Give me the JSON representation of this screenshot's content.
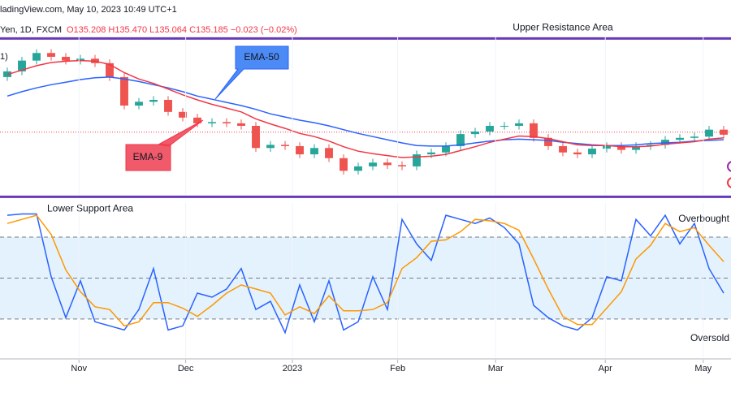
{
  "header": {
    "source": "ladingView.com, May 10, 2023 10:49 UTC+1",
    "symbol": "Yen, 1D, FXCM",
    "ohlc": "O135.208 H135.470 L135.064 C135.185 −0.023 (−0.02%)",
    "study": "1)"
  },
  "chart_data": [
    {
      "type": "candlestick",
      "xlim": [
        -0.5,
        49.5
      ],
      "ylim": [
        127,
        152
      ],
      "up_color": "#26a69a",
      "down_color": "#ef5350",
      "open": [
        145.6,
        146.5,
        148.2,
        149.4,
        148.8,
        148.2,
        148.5,
        147.8,
        145.6,
        141.1,
        141.7,
        142.0,
        140.1,
        139.2,
        138.3,
        138.5,
        138.3,
        137.9,
        134.4,
        134.9,
        134.7,
        133.4,
        134.4,
        132.8,
        130.8,
        131.5,
        132.1,
        131.7,
        131.5,
        133.4,
        133.7,
        134.7,
        136.6,
        137.0,
        137.9,
        137.9,
        138.3,
        136.0,
        134.7,
        133.7,
        133.4,
        134.3,
        134.7,
        134.1,
        134.7,
        134.9,
        135.7,
        136.0,
        136.2,
        137.3
      ],
      "high": [
        147.1,
        148.8,
        150.0,
        150.0,
        149.4,
        149.1,
        149.1,
        148.4,
        146.2,
        142.3,
        142.6,
        142.6,
        140.7,
        139.8,
        139.1,
        139.1,
        138.9,
        138.5,
        135.5,
        135.5,
        135.3,
        135.0,
        135.0,
        133.4,
        132.1,
        132.7,
        132.7,
        132.3,
        134.0,
        134.3,
        135.3,
        137.2,
        137.6,
        138.5,
        138.5,
        138.9,
        138.9,
        136.6,
        135.3,
        134.3,
        134.9,
        135.3,
        135.3,
        135.3,
        135.5,
        136.3,
        136.6,
        136.8,
        137.9,
        137.9
      ],
      "low": [
        145.0,
        145.9,
        147.6,
        148.2,
        147.6,
        147.6,
        147.2,
        145.0,
        140.5,
        140.5,
        141.1,
        139.5,
        138.6,
        137.7,
        137.7,
        137.7,
        137.3,
        133.8,
        133.8,
        134.1,
        132.8,
        132.8,
        132.2,
        130.2,
        130.2,
        130.9,
        131.1,
        130.9,
        130.9,
        132.8,
        133.1,
        134.1,
        136.0,
        136.4,
        137.3,
        137.3,
        135.4,
        134.1,
        133.1,
        132.8,
        132.8,
        133.7,
        133.5,
        133.5,
        134.1,
        134.3,
        135.1,
        135.4,
        135.6,
        135.9
      ],
      "close": [
        146.5,
        148.2,
        149.4,
        148.8,
        148.2,
        148.5,
        147.8,
        145.6,
        141.1,
        141.7,
        142.0,
        140.1,
        139.2,
        138.3,
        138.5,
        138.3,
        137.9,
        134.4,
        134.9,
        134.7,
        133.4,
        134.4,
        132.8,
        130.8,
        131.5,
        132.1,
        131.7,
        131.5,
        133.4,
        133.7,
        134.7,
        136.6,
        137.0,
        137.9,
        137.9,
        138.3,
        136.0,
        134.7,
        133.7,
        133.4,
        134.3,
        134.7,
        134.1,
        134.7,
        134.9,
        135.7,
        136.0,
        136.2,
        137.3,
        136.5
      ],
      "series": [
        {
          "name": "EMA-50",
          "color": "#2962ff",
          "values": [
            142.6,
            143.3,
            143.9,
            144.4,
            144.8,
            145.2,
            145.5,
            145.6,
            145.3,
            144.9,
            144.4,
            143.9,
            143.3,
            142.6,
            142.1,
            141.6,
            141.1,
            140.5,
            139.8,
            139.3,
            138.8,
            138.4,
            137.9,
            137.3,
            136.7,
            136.2,
            135.7,
            135.2,
            134.8,
            134.7,
            134.7,
            134.9,
            135.2,
            135.5,
            135.7,
            135.8,
            135.7,
            135.6,
            135.3,
            135.1,
            134.9,
            134.8,
            134.8,
            134.9,
            135.1,
            135.2,
            135.3,
            135.5,
            135.6,
            135.7
          ]
        },
        {
          "name": "EMA-9",
          "color": "#f23645",
          "values": [
            146.0,
            146.7,
            147.4,
            147.9,
            148.1,
            148.2,
            148.1,
            147.6,
            146.3,
            145.3,
            144.6,
            143.7,
            142.8,
            142.0,
            141.3,
            140.7,
            140.1,
            139.0,
            138.2,
            137.5,
            136.7,
            136.2,
            135.5,
            134.6,
            133.9,
            133.5,
            133.2,
            132.9,
            133.0,
            133.1,
            133.4,
            134.0,
            134.6,
            135.3,
            135.8,
            136.3,
            136.2,
            135.9,
            135.4,
            134.9,
            134.8,
            134.8,
            134.6,
            134.6,
            134.7,
            135.0,
            135.2,
            135.4,
            135.8,
            136.0
          ]
        }
      ],
      "price_line": 136.9,
      "resistance": {
        "label": "Upper Resistance Area",
        "value": 151.7,
        "color": "#673ab7"
      },
      "support": {
        "label": "Lower Support Area",
        "value": 126.7,
        "color": "#673ab7"
      }
    },
    {
      "type": "line",
      "xlim": [
        -0.5,
        49.5
      ],
      "ylim": [
        -8,
        105
      ],
      "xticks": [
        {
          "value": 4.9,
          "label": "Nov"
        },
        {
          "value": 12.2,
          "label": "Dec"
        },
        {
          "value": 19.5,
          "label": "2023"
        },
        {
          "value": 26.7,
          "label": "Feb"
        },
        {
          "value": 33.4,
          "label": "Mar"
        },
        {
          "value": 40.9,
          "label": "Apr"
        },
        {
          "value": 47.6,
          "label": "May"
        }
      ],
      "levels": [
        {
          "value": 80,
          "label": "Overbought"
        },
        50,
        {
          "value": 20,
          "label": "Oversold"
        }
      ],
      "band_color": "#e3f2fd",
      "series": [
        {
          "color": "#2962ff",
          "values": [
            96,
            97,
            97,
            51,
            21,
            48,
            18,
            15,
            12,
            27,
            57,
            12,
            15,
            39,
            36,
            42,
            57,
            27,
            33,
            10,
            45,
            18,
            48,
            12,
            18,
            51,
            27,
            93,
            75,
            63,
            96,
            93,
            90,
            94,
            87,
            75,
            30,
            21,
            15,
            12,
            21,
            51,
            48,
            93,
            81,
            96,
            75,
            90,
            57,
            39
          ]
        },
        {
          "color": "#ff9800",
          "values": [
            90,
            93,
            96,
            82,
            56,
            40,
            29,
            27,
            15,
            18,
            32,
            32,
            28,
            22,
            30,
            39,
            45,
            42,
            39,
            23,
            29,
            24,
            37,
            26,
            26,
            27,
            32,
            57,
            65,
            77,
            78,
            84,
            93,
            92,
            90,
            85,
            64,
            42,
            22,
            16,
            16,
            28,
            40,
            64,
            74,
            90,
            84,
            87,
            74,
            62
          ]
        }
      ]
    }
  ]
}
